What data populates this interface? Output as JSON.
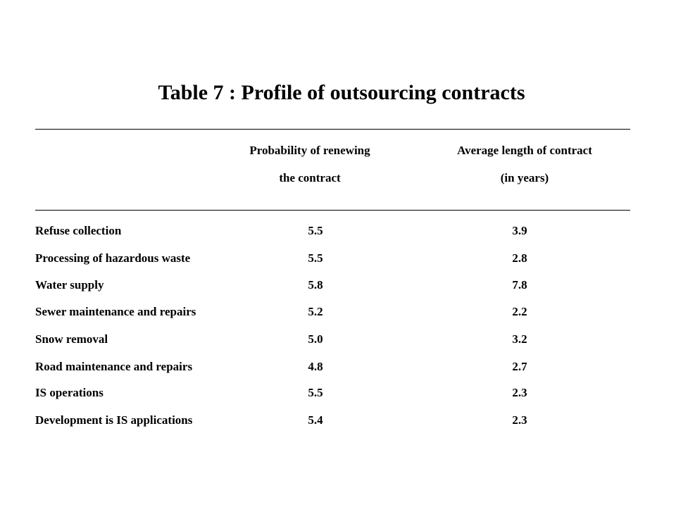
{
  "title": "Table 7 : Profile of outsourcing contracts",
  "columns": [
    {
      "line1": "Probability of renewing",
      "line2": "the contract"
    },
    {
      "line1": "Average length of contract",
      "line2": "(in years)"
    }
  ],
  "rows": [
    {
      "label": "Refuse collection",
      "renewal": "5.5",
      "length": "3.9"
    },
    {
      "label": "Processing of hazardous waste",
      "renewal": "5.5",
      "length": "2.8"
    },
    {
      "label": "Water supply",
      "renewal": "5.8",
      "length": "7.8"
    },
    {
      "label": "Sewer maintenance and repairs",
      "renewal": "5.2",
      "length": "2.2"
    },
    {
      "label": "Snow removal",
      "renewal": "5.0",
      "length": "3.2"
    },
    {
      "label": "Road maintenance and repairs",
      "renewal": "4.8",
      "length": "2.7"
    },
    {
      "label": "IS operations",
      "renewal": "5.5",
      "length": "2.3"
    },
    {
      "label": "Development is IS applications",
      "renewal": "5.4",
      "length": "2.3"
    }
  ]
}
